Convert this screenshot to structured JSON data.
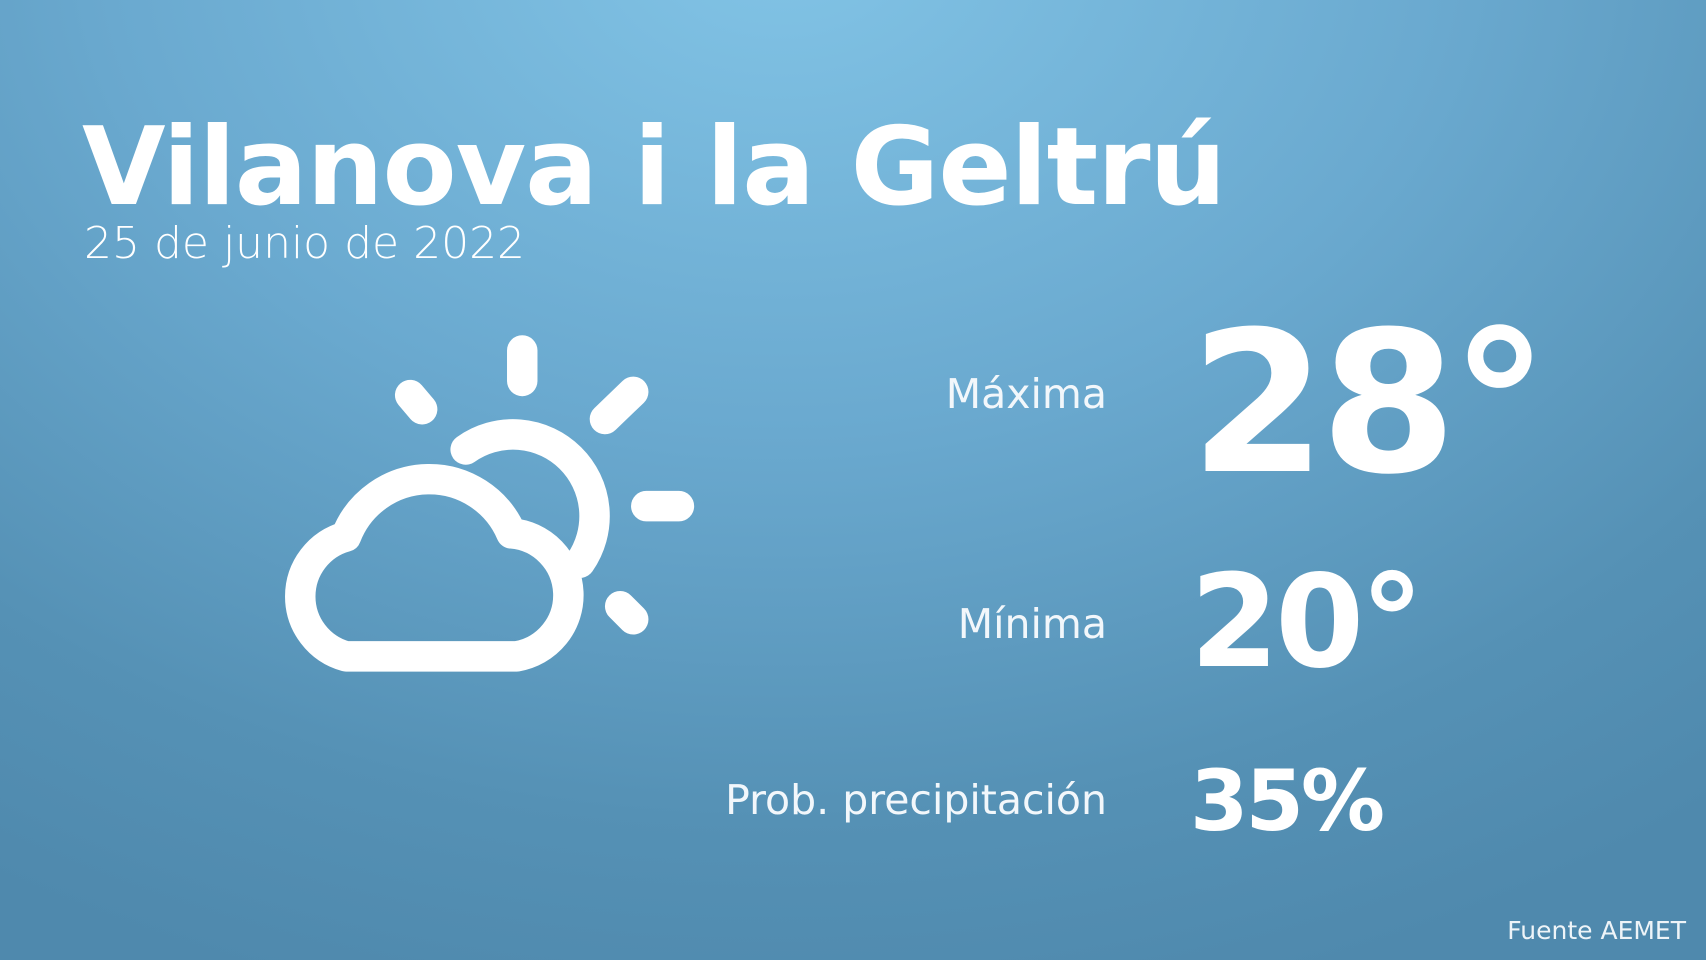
{
  "location": "Vilanova i la Geltrú",
  "date": "25 de junio de 2022",
  "weather_icon": "partly-cloudy-icon",
  "max": {
    "label": "Máxima",
    "value": "28°"
  },
  "min": {
    "label": "Mínima",
    "value": "20°"
  },
  "precip": {
    "label": "Prob. precipitación",
    "value": "35%"
  },
  "source": "Fuente AEMET",
  "colors": {
    "bg_top": "#82c4e6",
    "bg_bottom": "#4f89ad",
    "text": "#ffffff"
  }
}
